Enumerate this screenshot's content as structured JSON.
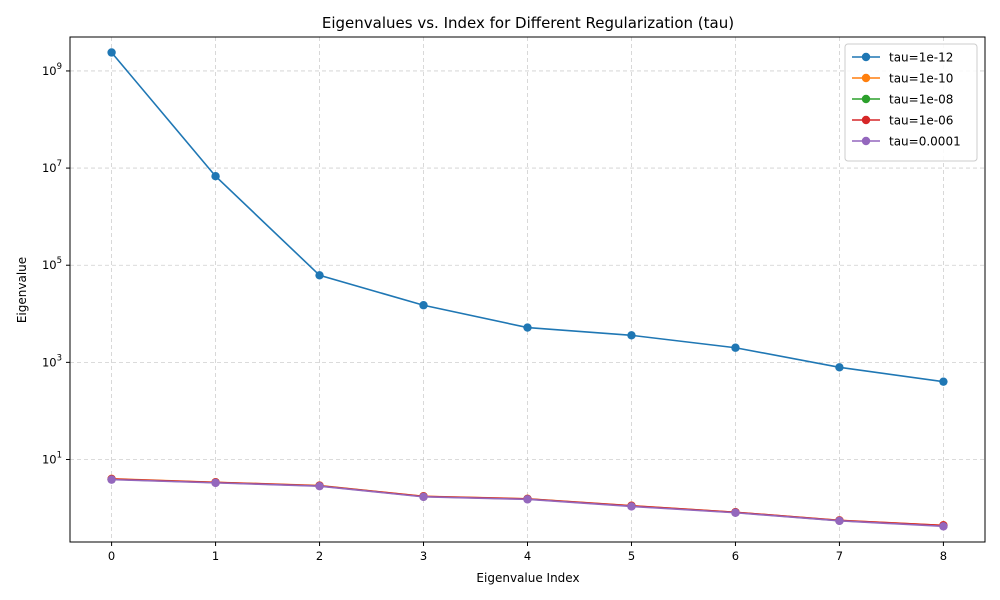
{
  "chart_data": {
    "type": "line",
    "title": "Eigenvalues vs. Index for Different Regularization (tau)",
    "xlabel": "Eigenvalue Index",
    "ylabel": "Eigenvalue",
    "yscale": "log",
    "grid": true,
    "legend_position": "top-right",
    "xlim": [
      -0.4,
      8.4
    ],
    "ylim": [
      0.2,
      5000000000
    ],
    "x_ticks": [
      0,
      1,
      2,
      3,
      4,
      5,
      6,
      7,
      8
    ],
    "x_tick_labels": [
      "0",
      "1",
      "2",
      "3",
      "4",
      "5",
      "6",
      "7",
      "8"
    ],
    "y_ticks": [
      10,
      1000,
      100000,
      10000000,
      1000000000
    ],
    "y_tick_labels": [
      {
        "base": "10",
        "exp": "1"
      },
      {
        "base": "10",
        "exp": "3"
      },
      {
        "base": "10",
        "exp": "5"
      },
      {
        "base": "10",
        "exp": "7"
      },
      {
        "base": "10",
        "exp": "9"
      }
    ],
    "x": [
      0,
      1,
      2,
      3,
      4,
      5,
      6,
      7,
      8
    ],
    "series": [
      {
        "name": "tau=1e-12",
        "color": "#1f77b4",
        "values": [
          2400000000,
          6800000,
          62000,
          15000,
          5200,
          3600,
          2000,
          790,
          400
        ]
      },
      {
        "name": "tau=1e-10",
        "color": "#ff7f0e",
        "values": [
          4.0,
          3.4,
          2.9,
          1.75,
          1.55,
          1.12,
          0.82,
          0.56,
          0.44
        ]
      },
      {
        "name": "tau=1e-08",
        "color": "#2ca02c",
        "values": [
          3.9,
          3.35,
          2.85,
          1.72,
          1.53,
          1.1,
          0.81,
          0.55,
          0.43
        ]
      },
      {
        "name": "tau=1e-06",
        "color": "#d62728",
        "values": [
          3.95,
          3.38,
          2.88,
          1.74,
          1.54,
          1.11,
          0.82,
          0.555,
          0.44
        ]
      },
      {
        "name": "tau=0.0001",
        "color": "#9467bd",
        "values": [
          3.85,
          3.3,
          2.82,
          1.7,
          1.51,
          1.08,
          0.8,
          0.545,
          0.42
        ]
      }
    ]
  }
}
